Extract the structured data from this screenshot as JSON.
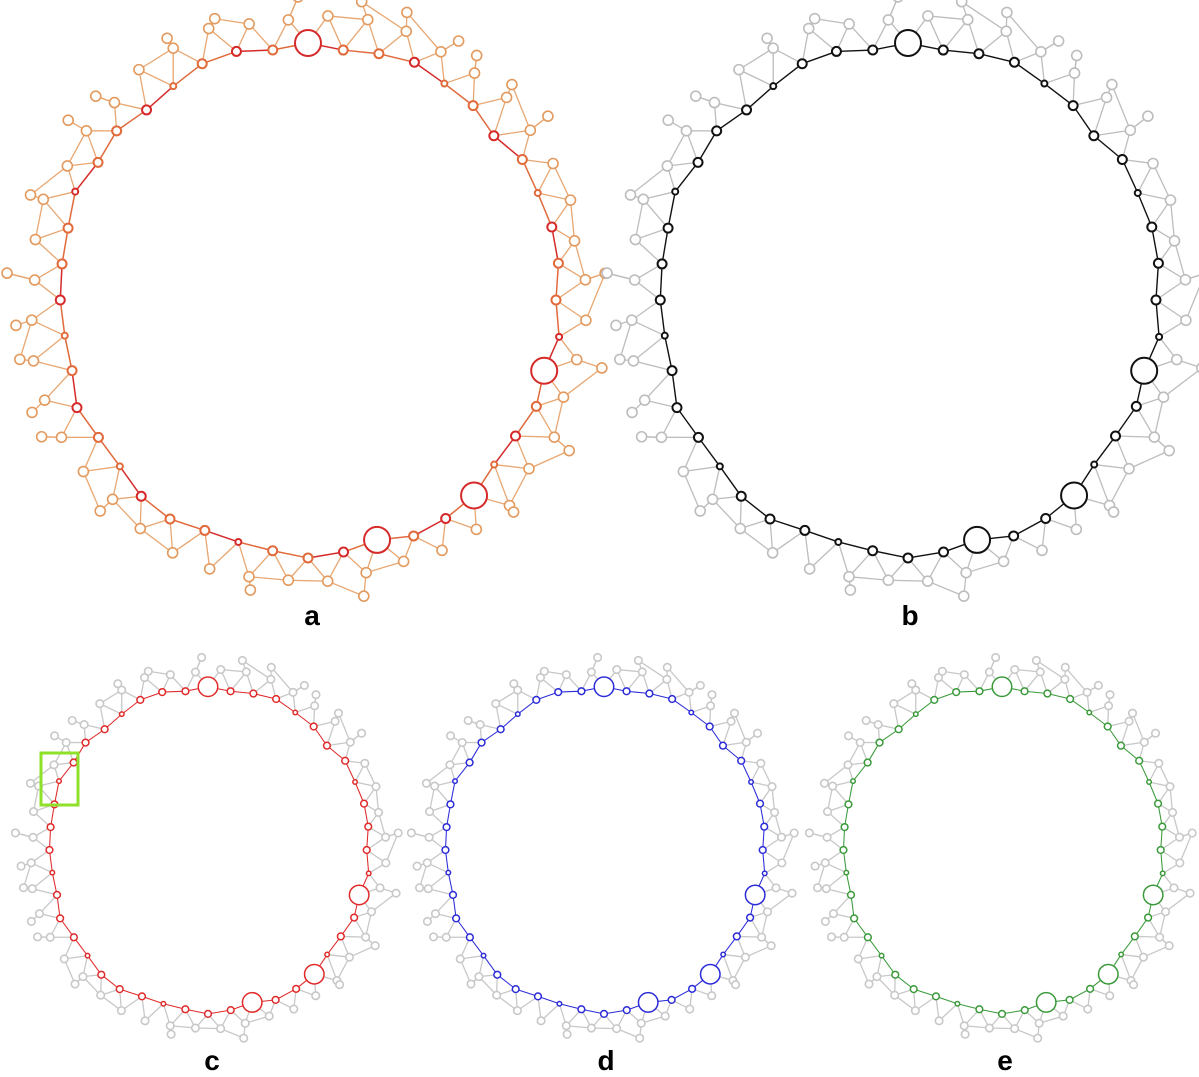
{
  "panels": [
    {
      "id": "a",
      "label": "a",
      "style": "heat",
      "colors": {
        "edge": "#e8a772",
        "node": "#e39a5e",
        "hot": "#d62a2a",
        "mid": "#e06a3a"
      }
    },
    {
      "id": "b",
      "label": "b",
      "style": "path",
      "colors": {
        "edge": "#bdbdbd",
        "node": "#bdbdbd",
        "path": "#111111"
      }
    },
    {
      "id": "c",
      "label": "c",
      "style": "path",
      "colors": {
        "edge": "#c8c8c8",
        "node": "#c8c8c8",
        "path": "#e02a2a"
      }
    },
    {
      "id": "d",
      "label": "d",
      "style": "path",
      "colors": {
        "edge": "#c8c8c8",
        "node": "#c8c8c8",
        "path": "#2b2bd8"
      }
    },
    {
      "id": "e",
      "label": "e",
      "style": "path",
      "colors": {
        "edge": "#c8c8c8",
        "node": "#c8c8c8",
        "path": "#3a9a3a"
      }
    }
  ],
  "highlight_box_color": "#8fe02a",
  "big_nodes": [
    0,
    13,
    17,
    20
  ]
}
